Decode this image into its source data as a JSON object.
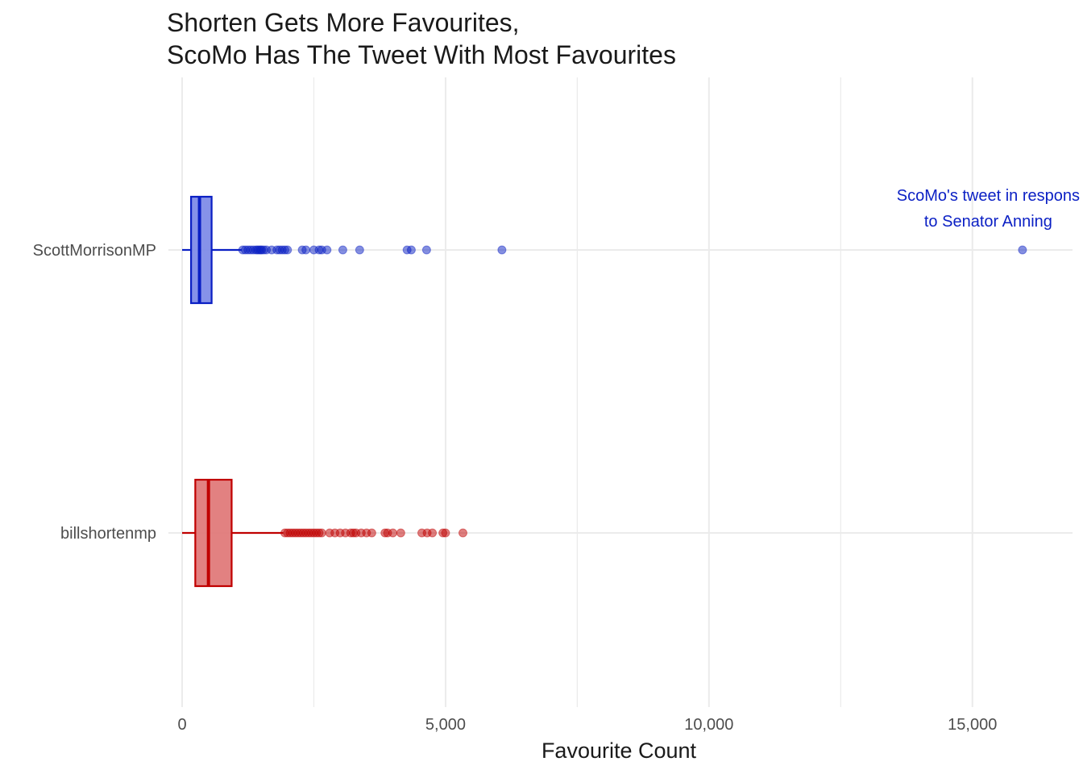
{
  "chart_data": {
    "type": "boxplot",
    "orientation": "horizontal",
    "title_lines": [
      "Shorten Gets More Favourites,",
      "ScoMo Has The Tweet With Most Favourites"
    ],
    "xlabel": "Favourite Count",
    "ylabel": "",
    "xlim": [
      -260,
      16900
    ],
    "x_ticks": [
      {
        "value": 0,
        "label": "0"
      },
      {
        "value": 5000,
        "label": "5,000"
      },
      {
        "value": 10000,
        "label": "10,000"
      },
      {
        "value": 15000,
        "label": "15,000"
      }
    ],
    "grid": true,
    "legend": "none",
    "categories": [
      "ScottMorrisonMP",
      "billshortenmp"
    ],
    "series": [
      {
        "category": "ScottMorrisonMP",
        "color": "#0a1fc4",
        "fill": "#7f8ce8",
        "whisker_low": 0,
        "q1": 170,
        "median": 330,
        "q3": 560,
        "whisker_high": 1130,
        "outliers": [
          1150,
          1200,
          1250,
          1300,
          1350,
          1400,
          1430,
          1460,
          1490,
          1510,
          1550,
          1600,
          1700,
          1800,
          1850,
          1900,
          1950,
          2000,
          2280,
          2350,
          2500,
          2600,
          2650,
          2750,
          3050,
          3370,
          4270,
          4350,
          4640,
          6070,
          15950
        ]
      },
      {
        "category": "billshortenmp",
        "color": "#c00000",
        "fill": "#e07a7a",
        "whisker_low": 0,
        "q1": 250,
        "median": 500,
        "q3": 940,
        "whisker_high": 1920,
        "outliers": [
          1950,
          2000,
          2050,
          2100,
          2150,
          2200,
          2250,
          2300,
          2350,
          2400,
          2450,
          2500,
          2550,
          2600,
          2650,
          2800,
          2900,
          3000,
          3100,
          3200,
          3250,
          3300,
          3400,
          3500,
          3600,
          3850,
          3900,
          4000,
          4150,
          4550,
          4650,
          4750,
          4950,
          5000,
          5330
        ]
      }
    ],
    "annotations": [
      {
        "category": "ScottMorrisonMP",
        "x": 15300,
        "color": "#0a1fc4",
        "lines": [
          "ScoMo's tweet in respons",
          "to Senator Anning"
        ]
      }
    ]
  }
}
